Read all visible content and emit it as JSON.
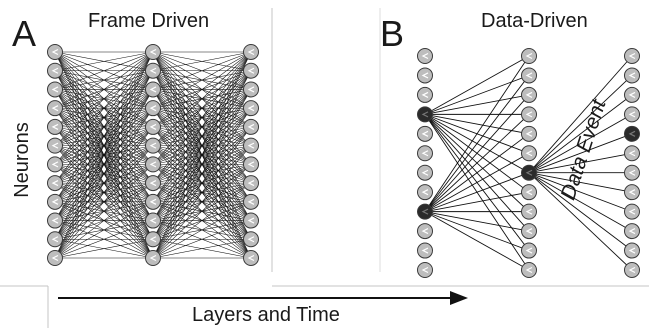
{
  "panel_a": {
    "letter": "A",
    "title": "Frame Driven",
    "layer_sizes": [
      12,
      12,
      12
    ]
  },
  "panel_b": {
    "letter": "B",
    "title": "Data-Driven",
    "layer_sizes": [
      12,
      12,
      12
    ],
    "active_neurons": {
      "layer1": [
        3,
        8
      ],
      "layer2": [
        6
      ],
      "layer3": [
        4
      ]
    },
    "annotation": "Data Event"
  },
  "y_label": "Neurons",
  "x_label": "Layers and Time",
  "colors": {
    "neuron_fill": "#bdbdbd",
    "neuron_active_fill": "#2b2b2b",
    "edge": "#111111",
    "frame_line": "#bdbdbd"
  }
}
